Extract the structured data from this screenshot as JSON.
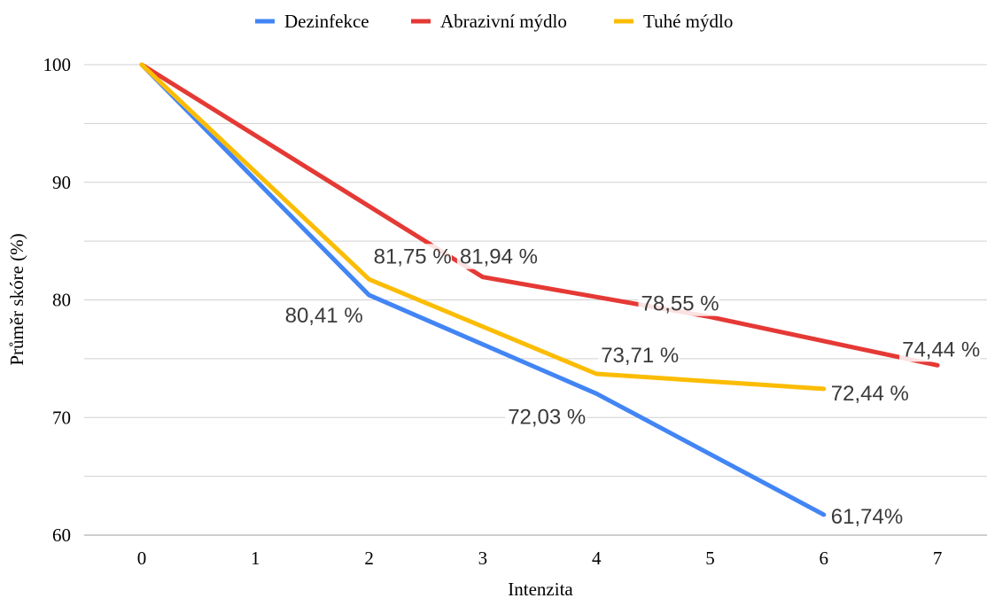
{
  "chart_data": {
    "type": "line",
    "title": "",
    "xlabel": "Intenzita",
    "ylabel": "Průměr skóre (%)",
    "xlim": [
      0,
      7
    ],
    "ylim": [
      60,
      100
    ],
    "x_ticks": [
      "0",
      "1",
      "2",
      "3",
      "4",
      "5",
      "6",
      "7"
    ],
    "y_ticks": [
      "60",
      "70",
      "80",
      "90",
      "100"
    ],
    "grid": true,
    "legend_position": "top",
    "series": [
      {
        "name": "Dezinfekce",
        "color": "#4285f4",
        "x": [
          0,
          2,
          4,
          6
        ],
        "y": [
          100,
          80.41,
          72.03,
          61.74
        ],
        "labels": [
          "",
          "80,41 %",
          "72,03 %",
          "61,74%"
        ]
      },
      {
        "name": "Abrazivní mýdlo",
        "color": "#e53935",
        "x": [
          0,
          3,
          5,
          7
        ],
        "y": [
          100,
          81.94,
          78.55,
          74.44
        ],
        "labels": [
          "",
          "81,94 %",
          "78,55 %",
          "74,44 %"
        ]
      },
      {
        "name": "Tuhé mýdlo",
        "color": "#fbbc04",
        "x": [
          0,
          2,
          4,
          6
        ],
        "y": [
          100,
          81.75,
          73.71,
          72.44
        ],
        "labels": [
          "",
          "81,75 %",
          "73,71 %",
          "72,44 %"
        ]
      }
    ]
  }
}
